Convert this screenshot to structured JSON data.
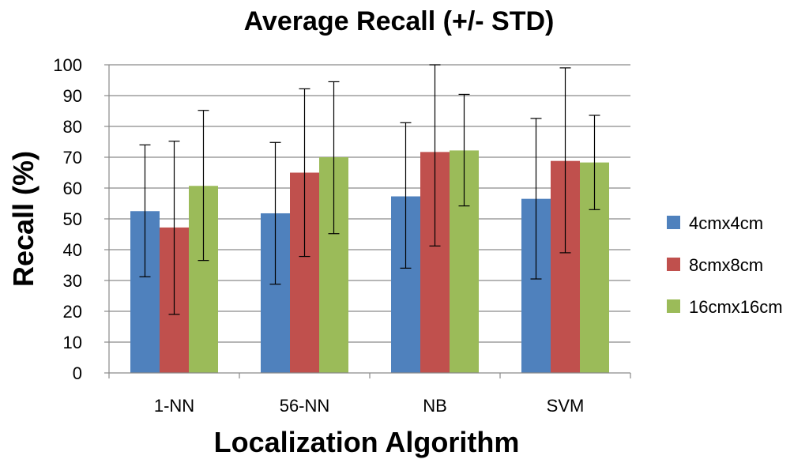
{
  "chart_data": {
    "type": "bar",
    "title": "Average Recall (+/- STD)",
    "xlabel": "Localization Algorithm",
    "ylabel": "Recall (%)",
    "ylim": [
      0,
      100
    ],
    "yticks": [
      0,
      10,
      20,
      30,
      40,
      50,
      60,
      70,
      80,
      90,
      100
    ],
    "grid": true,
    "legend_position": "right",
    "categories": [
      "1-NN",
      "56-NN",
      "NB",
      "SVM"
    ],
    "series": [
      {
        "name": "4cmx4cm",
        "color": "#4F81BD",
        "values": [
          52.5,
          51.8,
          57.3,
          56.5
        ],
        "err_low": [
          31.2,
          28.8,
          34.0,
          30.5
        ],
        "err_high": [
          74.0,
          74.8,
          81.2,
          82.6
        ]
      },
      {
        "name": "8cmx8cm",
        "color": "#C0504D",
        "values": [
          47.2,
          65.0,
          71.7,
          68.8
        ],
        "err_low": [
          19.0,
          37.8,
          41.2,
          39.0
        ],
        "err_high": [
          75.2,
          92.2,
          100,
          99.0
        ]
      },
      {
        "name": "16cmx16cm",
        "color": "#9BBB59",
        "values": [
          60.7,
          70.0,
          72.2,
          68.3
        ],
        "err_low": [
          36.5,
          45.2,
          54.2,
          53.0
        ],
        "err_high": [
          85.2,
          94.5,
          90.4,
          83.6
        ]
      }
    ]
  }
}
